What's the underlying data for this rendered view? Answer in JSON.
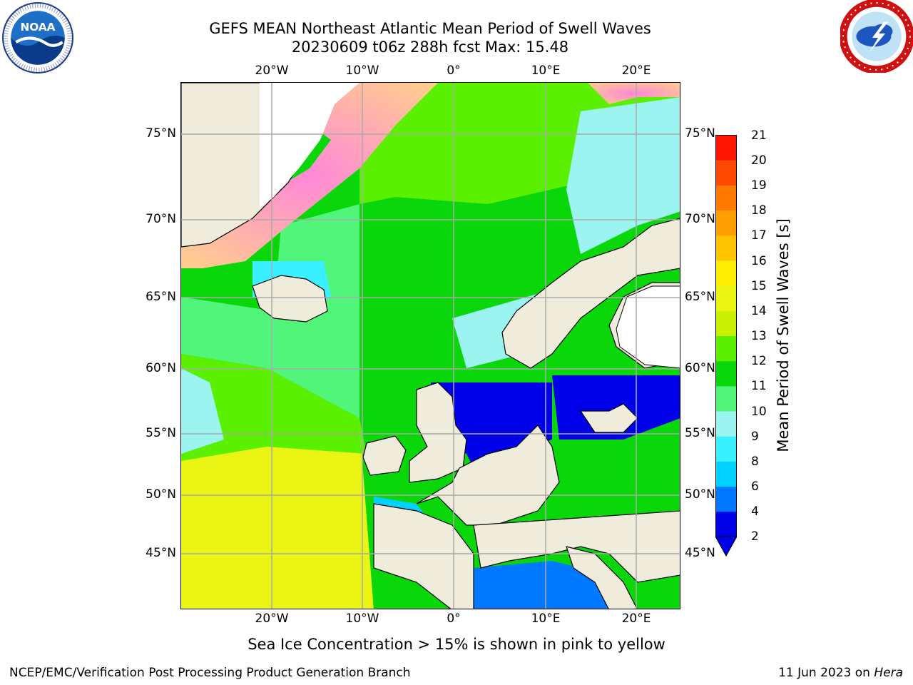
{
  "title_line1": "GEFS MEAN Northeast Atlantic Mean Period of Swell Waves",
  "title_line2": "20230609 t06z 288h fcst   Max: 15.48",
  "logos": {
    "noaa": {
      "icon": "noaa-logo",
      "text": "NOAA",
      "ring_text": "NATIONAL OCEANIC AND ATMOSPHERIC ADMINISTRATION · U.S. DEPARTMENT OF COMMERCE"
    },
    "nws": {
      "icon": "national-weather-service-logo",
      "ring_text": "NATIONAL WEATHER SERVICE"
    }
  },
  "map": {
    "projection": "lat-lon",
    "lon_range": [
      -30,
      25
    ],
    "lat_range": [
      41,
      78
    ],
    "lon_ticks": [
      "20°W",
      "10°W",
      "0°",
      "10°E",
      "20°E"
    ],
    "lat_ticks": [
      "75°N",
      "70°N",
      "65°N",
      "60°N",
      "55°N",
      "50°N",
      "45°N"
    ],
    "grid": true,
    "land_color": "#efecdc",
    "coastline_color": "#000000"
  },
  "colorbar": {
    "label": "Mean Period of Swell Waves [s]",
    "ticks": [
      "21",
      "20",
      "19",
      "18",
      "17",
      "16",
      "15",
      "14",
      "13",
      "12",
      "11",
      "10",
      "9",
      "8",
      "6",
      "4",
      "2"
    ],
    "levels": [
      2,
      4,
      6,
      8,
      9,
      10,
      11,
      12,
      13,
      14,
      15,
      16,
      17,
      18,
      19,
      20,
      21
    ],
    "colors": [
      "#0000e8",
      "#0078ff",
      "#00d2ff",
      "#38f0ff",
      "#9bf4f0",
      "#50f57a",
      "#0ad70a",
      "#5af000",
      "#c8f000",
      "#ebf514",
      "#ffee00",
      "#ffc400",
      "#ffa000",
      "#ff7800",
      "#ff4800",
      "#ff1400"
    ],
    "extend": "min",
    "placement": "right"
  },
  "ice_note": "Sea Ice Concentration > 15% is shown in pink to yellow",
  "footer": {
    "left": "NCEP/EMC/Verification Post Processing Product Generation Branch",
    "right_date": "11 Jun 2023 on ",
    "right_host": "Hera"
  }
}
